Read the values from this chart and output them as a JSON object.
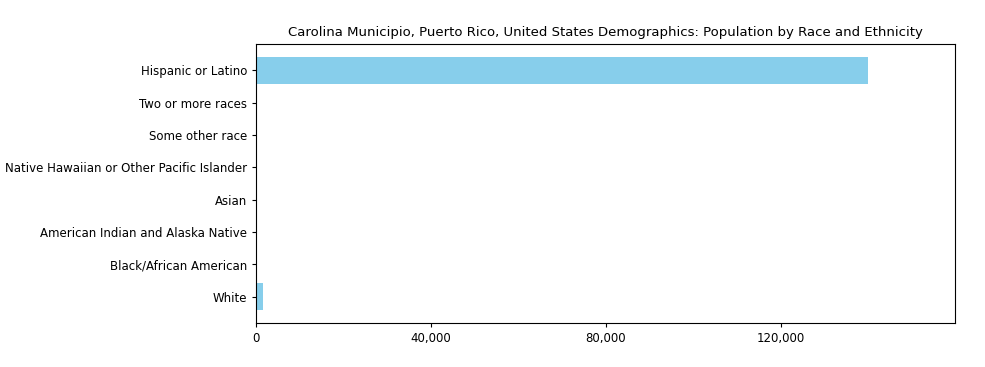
{
  "title": "Carolina Municipio, Puerto Rico, United States Demographics: Population by Race and Ethnicity",
  "categories": [
    "Hispanic or Latino",
    "Two or more races",
    "Some other race",
    "Native Hawaiian or Other Pacific Islander",
    "Asian",
    "American Indian and Alaska Native",
    "Black/African American",
    "White"
  ],
  "values": [
    140000,
    0,
    0,
    0,
    0,
    0,
    0,
    1500
  ],
  "bar_color": "#87CEEB",
  "xlim": [
    0,
    160000
  ],
  "xticks": [
    0,
    40000,
    80000,
    120000
  ],
  "background_color": "#ffffff",
  "title_fontsize": 9.5,
  "label_fontsize": 8.5,
  "tick_fontsize": 8.5
}
